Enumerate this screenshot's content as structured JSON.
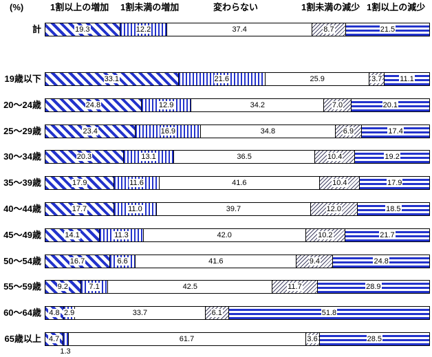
{
  "header": {
    "unit": "(%)"
  },
  "chart_data": {
    "type": "bar",
    "variant": "horizontal-100pct-stacked",
    "title": "",
    "xlabel": "",
    "ylabel": "",
    "xlim": [
      0,
      100
    ],
    "grid": false,
    "legend_position": "top-as-column-headers",
    "value_labels": "inside-segments-white-background",
    "categories": [
      "計",
      "19歳以下",
      "20〜24歳",
      "25〜29歳",
      "30〜34歳",
      "35〜39歳",
      "40〜44歳",
      "45〜49歳",
      "50〜54歳",
      "55〜59歳",
      "60〜64歳",
      "65歳以上"
    ],
    "series": [
      {
        "name": "1割以上の増加",
        "pattern": "blue-diagonal-stripes",
        "values": [
          19.3,
          33.1,
          24.8,
          23.4,
          20.3,
          17.9,
          17.7,
          14.1,
          16.7,
          9.2,
          4.8,
          4.7
        ]
      },
      {
        "name": "1割未満の増加",
        "pattern": "blue-vertical-stripes",
        "values": [
          12.2,
          21.6,
          12.9,
          16.9,
          13.1,
          11.6,
          11.0,
          11.3,
          6.6,
          7.1,
          2.9,
          1.3
        ]
      },
      {
        "name": "変わらない",
        "pattern": "solid-white",
        "values": [
          37.4,
          25.9,
          34.2,
          34.8,
          36.5,
          41.6,
          39.7,
          42.0,
          41.6,
          42.5,
          33.7,
          61.7
        ]
      },
      {
        "name": "1割未満の減少",
        "pattern": "thin-diagonal-hatch",
        "values": [
          8.7,
          3.7,
          7.0,
          6.9,
          10.4,
          10.4,
          12.0,
          10.2,
          9.4,
          11.7,
          6.1,
          3.6
        ]
      },
      {
        "name": "1割以上の減少",
        "pattern": "blue-horizontal-stripes",
        "values": [
          21.5,
          11.1,
          20.1,
          17.4,
          19.2,
          17.9,
          18.5,
          21.7,
          24.8,
          28.9,
          51.8,
          28.5
        ]
      }
    ],
    "outside_label": {
      "category_index": 11,
      "series_index": 1,
      "value": 1.3,
      "note": "shown below bar because segment too narrow"
    }
  },
  "colors": {
    "stripe_blue": "#2333cc",
    "hatch_dark": "#444466",
    "bar_border": "#000000",
    "background": "#ffffff"
  }
}
